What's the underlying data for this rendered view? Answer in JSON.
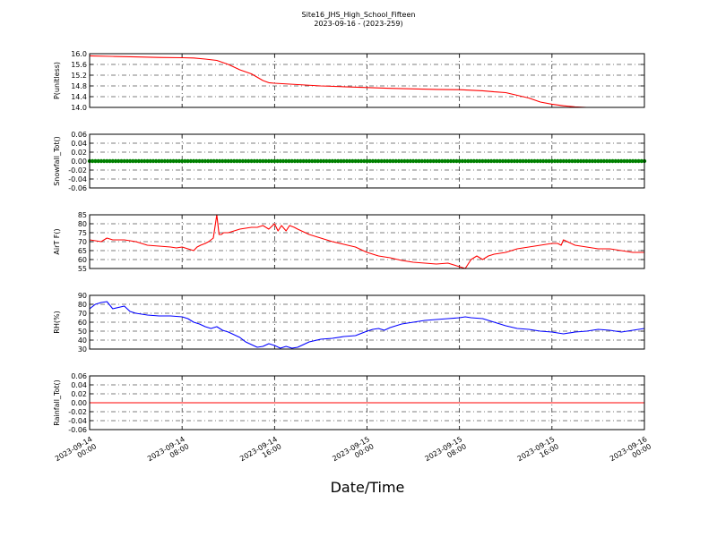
{
  "title": "Site16_JHS_High_School_Fifteen",
  "subtitle": "2023-09-16 - (2023-259)",
  "xlabel": "Date/Time",
  "x_tick_labels": [
    [
      "2023-09-14",
      "00:00"
    ],
    [
      "2023-09-14",
      "08:00"
    ],
    [
      "2023-09-14",
      "16:00"
    ],
    [
      "2023-09-15",
      "00:00"
    ],
    [
      "2023-09-15",
      "08:00"
    ],
    [
      "2023-09-15",
      "16:00"
    ],
    [
      "2023-09-16",
      "00:00"
    ]
  ],
  "chart_data": [
    {
      "type": "line",
      "ylabel": "P(unitless)",
      "ylim": [
        14.0,
        16.0
      ],
      "yticks": [
        "14.0",
        "14.4",
        "14.8",
        "15.2",
        "15.6",
        "16.0"
      ],
      "ytick_values": [
        14.0,
        14.4,
        14.8,
        15.2,
        15.6,
        16.0
      ],
      "grid": true,
      "color": "#ff0000",
      "x_hours": [
        0,
        2,
        4,
        6,
        8,
        9,
        10,
        11,
        12,
        13,
        14,
        15,
        15.5,
        16,
        18,
        20,
        22,
        24,
        26,
        28,
        30,
        32,
        34,
        35,
        36,
        37,
        38,
        39,
        40,
        41,
        42,
        43,
        44,
        45,
        46,
        47,
        48
      ],
      "y": [
        15.92,
        15.9,
        15.88,
        15.86,
        15.85,
        15.84,
        15.8,
        15.75,
        15.6,
        15.4,
        15.25,
        15.0,
        14.92,
        14.9,
        14.85,
        14.8,
        14.77,
        14.74,
        14.71,
        14.69,
        14.67,
        14.66,
        14.62,
        14.58,
        14.55,
        14.45,
        14.35,
        14.2,
        14.12,
        14.06,
        14.02,
        14.0,
        14.0,
        14.0,
        14.0,
        14.0,
        14.0
      ]
    },
    {
      "type": "scatter",
      "ylabel": "Snowfall_Tot()",
      "ylim": [
        -0.06,
        0.06
      ],
      "yticks": [
        "-0.06",
        "-0.04",
        "-0.02",
        "0.00",
        "0.02",
        "0.04",
        "0.06"
      ],
      "ytick_values": [
        -0.06,
        -0.04,
        -0.02,
        0.0,
        0.02,
        0.04,
        0.06
      ],
      "grid": true,
      "color": "#008000",
      "x_range_hours": [
        0,
        48
      ],
      "constant_value": 0.0
    },
    {
      "type": "line",
      "ylabel": "AirT F()",
      "ylim": [
        55,
        85
      ],
      "yticks": [
        "55",
        "60",
        "65",
        "70",
        "75",
        "80",
        "85"
      ],
      "ytick_values": [
        55,
        60,
        65,
        70,
        75,
        80,
        85
      ],
      "grid": true,
      "color": "#ff0000",
      "x_hours": [
        0,
        1,
        1.5,
        2,
        3,
        4,
        5,
        6,
        7,
        7.5,
        8,
        8.5,
        9,
        9.3,
        9.6,
        10,
        10.3,
        10.7,
        11,
        11.2,
        11.4,
        11.6,
        12,
        13,
        14,
        14.5,
        15,
        15.5,
        16,
        16.3,
        16.6,
        17,
        17.3,
        17.7,
        18,
        19,
        20,
        21,
        22,
        23,
        24,
        25,
        26,
        27,
        28,
        29,
        30,
        31,
        32,
        32.5,
        33,
        33.5,
        34,
        34.5,
        35,
        36,
        37,
        38,
        39,
        40,
        40.5,
        40.8,
        41,
        42,
        43,
        44,
        45,
        46,
        47,
        48
      ],
      "y": [
        71,
        70,
        72,
        71,
        71,
        70,
        68,
        67.5,
        67,
        66.5,
        67,
        66,
        65,
        67,
        68,
        69,
        70,
        72,
        85,
        74,
        74,
        75,
        75,
        77,
        78,
        78,
        79,
        77,
        80,
        76,
        79,
        76,
        79,
        78,
        77,
        74,
        72,
        70,
        68.5,
        67,
        64,
        62,
        61,
        59.5,
        58.5,
        58,
        57.5,
        58,
        56,
        55,
        60,
        62,
        60,
        62,
        63,
        64,
        66,
        67,
        68,
        69,
        69,
        68,
        71,
        68,
        67,
        66,
        66,
        65,
        64,
        64
      ]
    },
    {
      "type": "line",
      "ylabel": "RH(%)",
      "ylim": [
        30,
        90
      ],
      "yticks": [
        "30",
        "40",
        "50",
        "60",
        "70",
        "80",
        "90"
      ],
      "ytick_values": [
        30,
        40,
        50,
        60,
        70,
        80,
        90
      ],
      "grid": true,
      "color": "#0000ff",
      "x_hours": [
        0,
        0.5,
        1,
        1.5,
        2,
        3,
        3.5,
        4,
        5,
        6,
        7,
        8,
        8.5,
        9,
        9.5,
        10,
        10.5,
        11,
        11.5,
        12,
        12.5,
        13,
        13.5,
        14,
        14.5,
        15,
        15.5,
        16,
        16.5,
        17,
        17.5,
        18,
        19,
        20,
        21,
        22,
        23,
        24,
        24.5,
        25,
        25.5,
        26,
        27,
        28,
        29,
        30,
        31,
        32,
        32.5,
        33,
        34,
        35,
        36,
        37,
        38,
        39,
        40,
        41,
        42,
        43,
        44,
        45,
        46,
        47,
        48
      ],
      "y": [
        75,
        80,
        82,
        83,
        75,
        78,
        72,
        70,
        68,
        67,
        67,
        66,
        64,
        60,
        58,
        55,
        53,
        55,
        51,
        49,
        46,
        43,
        38,
        35,
        32,
        33,
        36,
        34,
        31,
        33,
        31,
        32,
        38,
        41,
        42,
        44,
        45,
        50,
        52,
        53,
        51,
        54,
        58,
        60,
        62,
        63,
        64,
        65,
        66,
        65,
        64,
        60,
        56,
        53,
        52,
        50,
        49,
        47,
        49,
        50,
        52,
        51,
        49,
        51,
        53
      ]
    },
    {
      "type": "line",
      "ylabel": "Rainfall_Tot()",
      "ylim": [
        -0.06,
        0.06
      ],
      "yticks": [
        "-0.06",
        "-0.04",
        "-0.02",
        "0.00",
        "0.02",
        "0.04",
        "0.06"
      ],
      "ytick_values": [
        -0.06,
        -0.04,
        -0.02,
        0.0,
        0.02,
        0.04,
        0.06
      ],
      "grid": true,
      "color": "#ff0000",
      "x_hours": [
        0,
        48
      ],
      "y": [
        0.0,
        0.0
      ]
    }
  ]
}
